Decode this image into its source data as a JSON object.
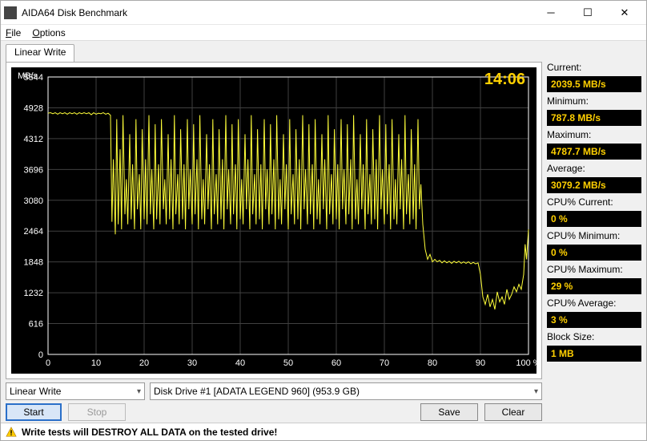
{
  "window": {
    "title": "AIDA64 Disk Benchmark"
  },
  "menu": {
    "file": "File",
    "options": "Options"
  },
  "tab": {
    "label": "Linear Write"
  },
  "chart": {
    "type": "line",
    "y_label": "MB/s",
    "x_suffix": "%",
    "timer": "14:06",
    "background_color": "#000000",
    "line_color": "#ffff3a",
    "axis_color": "#ffffff",
    "grid_color": "#404040",
    "tick_fontsize": 11,
    "xlim": [
      0,
      100
    ],
    "xtick_step": 10,
    "ylim": [
      0,
      5544
    ],
    "ytick_step": 616,
    "xticks": [
      0,
      10,
      20,
      30,
      40,
      50,
      60,
      70,
      80,
      90,
      100
    ],
    "yticks": [
      0,
      616,
      1232,
      1848,
      2464,
      3080,
      3696,
      4312,
      4928,
      5544
    ],
    "data": [
      [
        0,
        4820
      ],
      [
        0.5,
        4830
      ],
      [
        1,
        4810
      ],
      [
        1.5,
        4830
      ],
      [
        2,
        4800
      ],
      [
        2.5,
        4830
      ],
      [
        3,
        4810
      ],
      [
        3.5,
        4830
      ],
      [
        4,
        4800
      ],
      [
        4.5,
        4830
      ],
      [
        5,
        4810
      ],
      [
        5.5,
        4830
      ],
      [
        6,
        4800
      ],
      [
        6.5,
        4830
      ],
      [
        7,
        4810
      ],
      [
        7.5,
        4830
      ],
      [
        8,
        4810
      ],
      [
        8.5,
        4830
      ],
      [
        9,
        4790
      ],
      [
        9.5,
        4830
      ],
      [
        10,
        4800
      ],
      [
        10.5,
        4820
      ],
      [
        11,
        4810
      ],
      [
        11.5,
        4830
      ],
      [
        12,
        4800
      ],
      [
        12.5,
        4820
      ],
      [
        13,
        4780
      ],
      [
        13.3,
        2650
      ],
      [
        13.6,
        3900
      ],
      [
        14,
        2400
      ],
      [
        14.3,
        4700
      ],
      [
        14.6,
        2600
      ],
      [
        15,
        4100
      ],
      [
        15.3,
        2500
      ],
      [
        15.6,
        4780
      ],
      [
        16,
        2800
      ],
      [
        16.3,
        3500
      ],
      [
        16.6,
        2600
      ],
      [
        17,
        4400
      ],
      [
        17.3,
        2700
      ],
      [
        17.6,
        3800
      ],
      [
        18,
        2500
      ],
      [
        18.3,
        4700
      ],
      [
        18.6,
        2900
      ],
      [
        19,
        3600
      ],
      [
        19.3,
        2500
      ],
      [
        19.6,
        4500
      ],
      [
        20,
        2700
      ],
      [
        20.3,
        3900
      ],
      [
        20.6,
        2600
      ],
      [
        21,
        4780
      ],
      [
        21.3,
        2800
      ],
      [
        21.6,
        3700
      ],
      [
        22,
        2500
      ],
      [
        22.3,
        4600
      ],
      [
        22.6,
        2700
      ],
      [
        23,
        3800
      ],
      [
        23.3,
        2600
      ],
      [
        23.6,
        4700
      ],
      [
        24,
        2900
      ],
      [
        24.3,
        3500
      ],
      [
        24.6,
        2600
      ],
      [
        25,
        4400
      ],
      [
        25.3,
        2700
      ],
      [
        25.6,
        3900
      ],
      [
        26,
        2500
      ],
      [
        26.3,
        4780
      ],
      [
        26.6,
        2800
      ],
      [
        27,
        3600
      ],
      [
        27.3,
        2600
      ],
      [
        27.6,
        4500
      ],
      [
        28,
        2700
      ],
      [
        28.3,
        3800
      ],
      [
        28.6,
        2500
      ],
      [
        29,
        4700
      ],
      [
        29.3,
        2900
      ],
      [
        29.6,
        3700
      ],
      [
        30,
        2600
      ],
      [
        30.3,
        4600
      ],
      [
        30.6,
        2800
      ],
      [
        31,
        3900
      ],
      [
        31.3,
        2500
      ],
      [
        31.6,
        4780
      ],
      [
        32,
        2700
      ],
      [
        32.3,
        3500
      ],
      [
        32.6,
        2600
      ],
      [
        33,
        4400
      ],
      [
        33.3,
        2900
      ],
      [
        33.6,
        3800
      ],
      [
        34,
        2500
      ],
      [
        34.3,
        4700
      ],
      [
        34.6,
        2800
      ],
      [
        35,
        3600
      ],
      [
        35.3,
        2600
      ],
      [
        35.6,
        4500
      ],
      [
        36,
        2700
      ],
      [
        36.3,
        3900
      ],
      [
        36.6,
        2500
      ],
      [
        37,
        4780
      ],
      [
        37.3,
        2900
      ],
      [
        37.6,
        3700
      ],
      [
        38,
        2600
      ],
      [
        38.3,
        4600
      ],
      [
        38.6,
        2800
      ],
      [
        39,
        3800
      ],
      [
        39.3,
        2500
      ],
      [
        39.6,
        4700
      ],
      [
        40,
        2700
      ],
      [
        40.3,
        3500
      ],
      [
        40.6,
        2600
      ],
      [
        41,
        4400
      ],
      [
        41.3,
        2900
      ],
      [
        41.6,
        3900
      ],
      [
        42,
        2500
      ],
      [
        42.3,
        4780
      ],
      [
        42.6,
        2800
      ],
      [
        43,
        3600
      ],
      [
        43.3,
        2600
      ],
      [
        43.6,
        4500
      ],
      [
        44,
        2700
      ],
      [
        44.3,
        3800
      ],
      [
        44.6,
        2500
      ],
      [
        45,
        4700
      ],
      [
        45.3,
        2900
      ],
      [
        45.6,
        3700
      ],
      [
        46,
        2600
      ],
      [
        46.3,
        4600
      ],
      [
        46.6,
        2800
      ],
      [
        47,
        3900
      ],
      [
        47.3,
        2500
      ],
      [
        47.6,
        4780
      ],
      [
        48,
        2700
      ],
      [
        48.3,
        3500
      ],
      [
        48.6,
        2600
      ],
      [
        49,
        4400
      ],
      [
        49.3,
        2900
      ],
      [
        49.6,
        3800
      ],
      [
        50,
        2500
      ],
      [
        50.3,
        4700
      ],
      [
        50.6,
        2800
      ],
      [
        51,
        3600
      ],
      [
        51.3,
        2600
      ],
      [
        51.6,
        4500
      ],
      [
        52,
        2700
      ],
      [
        52.3,
        3900
      ],
      [
        52.6,
        2500
      ],
      [
        53,
        4780
      ],
      [
        53.3,
        2900
      ],
      [
        53.6,
        3700
      ],
      [
        54,
        2600
      ],
      [
        54.3,
        4600
      ],
      [
        54.6,
        2800
      ],
      [
        55,
        3800
      ],
      [
        55.3,
        2500
      ],
      [
        55.6,
        4700
      ],
      [
        56,
        2700
      ],
      [
        56.3,
        3500
      ],
      [
        56.6,
        2600
      ],
      [
        57,
        4400
      ],
      [
        57.3,
        2900
      ],
      [
        57.6,
        3900
      ],
      [
        58,
        2500
      ],
      [
        58.3,
        4780
      ],
      [
        58.6,
        2800
      ],
      [
        59,
        3600
      ],
      [
        59.3,
        2600
      ],
      [
        59.6,
        4500
      ],
      [
        60,
        2700
      ],
      [
        60.3,
        3800
      ],
      [
        60.6,
        2500
      ],
      [
        61,
        4700
      ],
      [
        61.3,
        2900
      ],
      [
        61.6,
        3700
      ],
      [
        62,
        2600
      ],
      [
        62.3,
        4600
      ],
      [
        62.6,
        2800
      ],
      [
        63,
        3900
      ],
      [
        63.3,
        2500
      ],
      [
        63.6,
        4780
      ],
      [
        64,
        2700
      ],
      [
        64.3,
        3500
      ],
      [
        64.6,
        2600
      ],
      [
        65,
        4400
      ],
      [
        65.3,
        2900
      ],
      [
        65.6,
        3800
      ],
      [
        66,
        2500
      ],
      [
        66.3,
        4700
      ],
      [
        66.6,
        2800
      ],
      [
        67,
        3600
      ],
      [
        67.3,
        2600
      ],
      [
        67.6,
        4500
      ],
      [
        68,
        2700
      ],
      [
        68.3,
        3900
      ],
      [
        68.6,
        2500
      ],
      [
        69,
        4780
      ],
      [
        69.3,
        2900
      ],
      [
        69.6,
        3700
      ],
      [
        70,
        2600
      ],
      [
        70.3,
        4600
      ],
      [
        70.6,
        2800
      ],
      [
        71,
        3800
      ],
      [
        71.3,
        2500
      ],
      [
        71.6,
        4700
      ],
      [
        72,
        2700
      ],
      [
        72.3,
        3500
      ],
      [
        72.6,
        2600
      ],
      [
        73,
        4400
      ],
      [
        73.3,
        2900
      ],
      [
        73.6,
        3900
      ],
      [
        74,
        2500
      ],
      [
        74.3,
        4780
      ],
      [
        74.6,
        2800
      ],
      [
        75,
        3600
      ],
      [
        75.3,
        2600
      ],
      [
        75.6,
        4500
      ],
      [
        76,
        2700
      ],
      [
        76.3,
        3800
      ],
      [
        76.6,
        2500
      ],
      [
        77,
        4700
      ],
      [
        77.3,
        2900
      ],
      [
        77.6,
        3400
      ],
      [
        78,
        2600
      ],
      [
        78.5,
        2100
      ],
      [
        79,
        1900
      ],
      [
        79.5,
        2000
      ],
      [
        80,
        1850
      ],
      [
        80.5,
        1900
      ],
      [
        81,
        1850
      ],
      [
        81.5,
        1880
      ],
      [
        82,
        1830
      ],
      [
        82.5,
        1870
      ],
      [
        83,
        1830
      ],
      [
        83.5,
        1860
      ],
      [
        84,
        1820
      ],
      [
        84.5,
        1860
      ],
      [
        85,
        1830
      ],
      [
        85.5,
        1860
      ],
      [
        86,
        1820
      ],
      [
        86.5,
        1850
      ],
      [
        87,
        1820
      ],
      [
        87.5,
        1850
      ],
      [
        88,
        1810
      ],
      [
        88.5,
        1840
      ],
      [
        89,
        1810
      ],
      [
        89.5,
        1830
      ],
      [
        90,
        1600
      ],
      [
        90.5,
        1150
      ],
      [
        91,
        1000
      ],
      [
        91.5,
        1200
      ],
      [
        92,
        950
      ],
      [
        92.5,
        1100
      ],
      [
        93,
        900
      ],
      [
        93.5,
        1250
      ],
      [
        94,
        1050
      ],
      [
        94.5,
        1150
      ],
      [
        95,
        1000
      ],
      [
        95.5,
        1300
      ],
      [
        96,
        1100
      ],
      [
        96.5,
        1200
      ],
      [
        97,
        1350
      ],
      [
        97.5,
        1250
      ],
      [
        98,
        1400
      ],
      [
        98.5,
        1300
      ],
      [
        99,
        1600
      ],
      [
        99.3,
        2200
      ],
      [
        99.6,
        1900
      ],
      [
        100,
        2500
      ]
    ]
  },
  "selects": {
    "mode": "Linear Write",
    "drive": "Disk Drive #1  [ADATA LEGEND 960]  (953.9 GB)"
  },
  "buttons": {
    "start": "Start",
    "stop": "Stop",
    "save": "Save",
    "clear": "Clear"
  },
  "stats": {
    "current": {
      "label": "Current:",
      "value": "2039.5 MB/s"
    },
    "minimum": {
      "label": "Minimum:",
      "value": "787.8 MB/s"
    },
    "maximum": {
      "label": "Maximum:",
      "value": "4787.7 MB/s"
    },
    "average": {
      "label": "Average:",
      "value": "3079.2 MB/s"
    },
    "cpu_current": {
      "label": "CPU% Current:",
      "value": "0 %"
    },
    "cpu_minimum": {
      "label": "CPU% Minimum:",
      "value": "0 %"
    },
    "cpu_maximum": {
      "label": "CPU% Maximum:",
      "value": "29 %"
    },
    "cpu_average": {
      "label": "CPU% Average:",
      "value": "3 %"
    },
    "block_size": {
      "label": "Block Size:",
      "value": "1 MB"
    }
  },
  "footer": {
    "warning": "Write tests will DESTROY ALL DATA on the tested drive!"
  },
  "colors": {
    "value_bg": "#000000",
    "value_fg": "#ffd000"
  }
}
